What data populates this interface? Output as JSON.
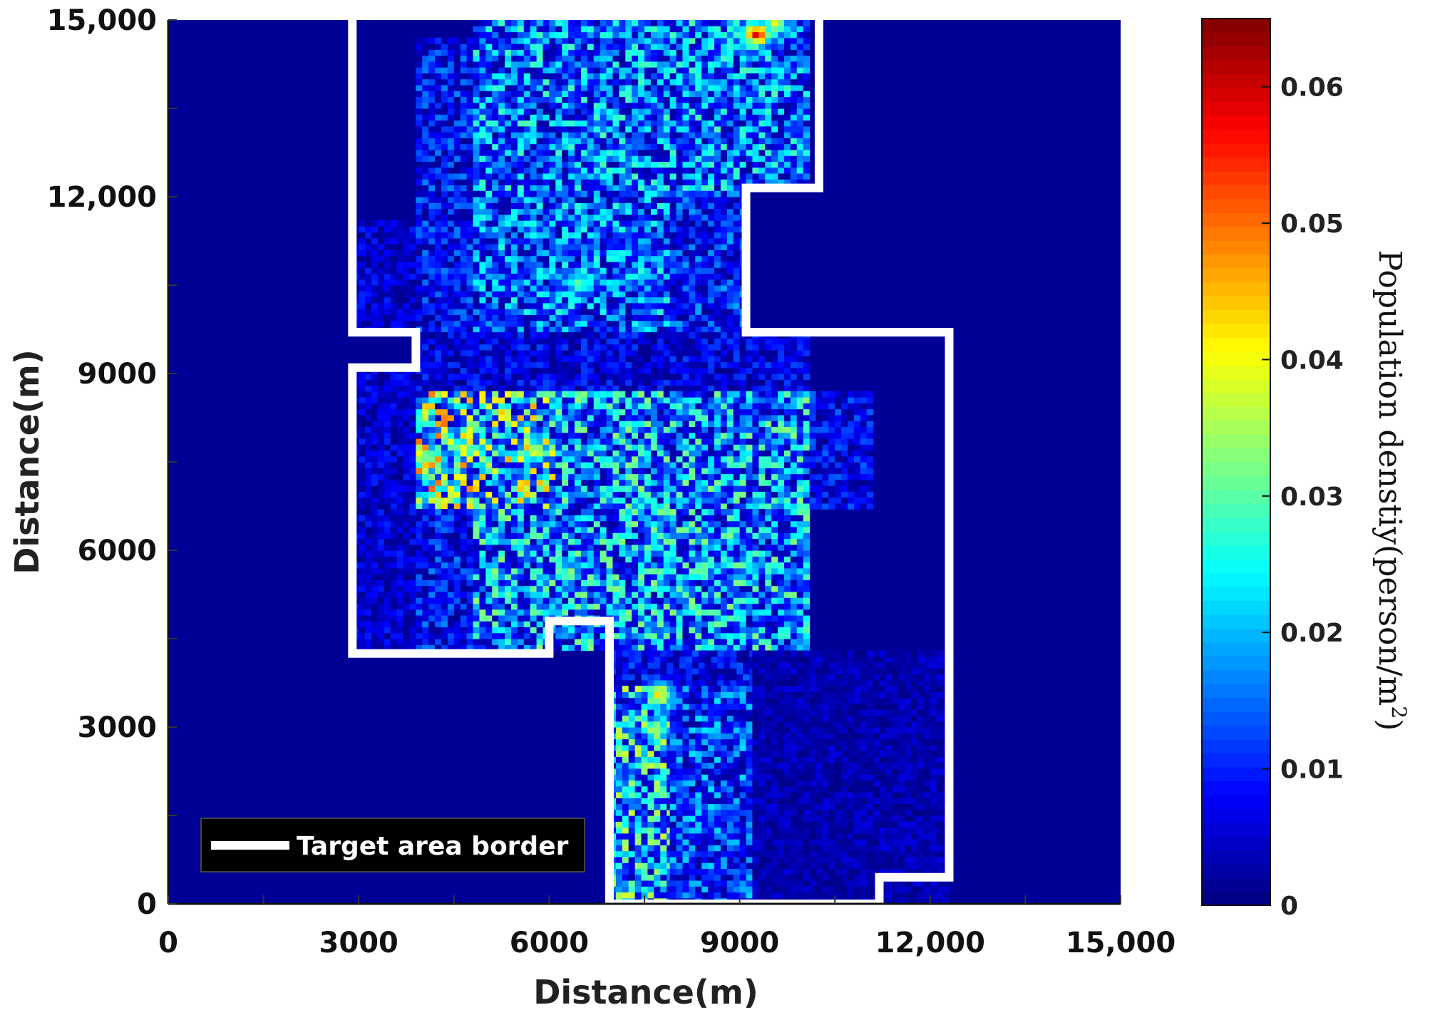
{
  "chart_data": {
    "type": "heatmap",
    "title": "",
    "xlabel": "Distance(m)",
    "ylabel": "Distance(m)",
    "xlim": [
      0,
      15000
    ],
    "ylim": [
      0,
      15000
    ],
    "x_tick_labels": [
      "0",
      "3000",
      "6000",
      "9000",
      "12,000",
      "15,000"
    ],
    "y_tick_labels": [
      "0",
      "3000",
      "6000",
      "9000",
      "12,000",
      "15,000"
    ],
    "x_ticks": [
      0,
      3000,
      6000,
      9000,
      12000,
      15000
    ],
    "y_ticks": [
      0,
      3000,
      6000,
      9000,
      12000,
      15000
    ],
    "colorscale": "jet",
    "colorbar": {
      "title": "Population denstiy(person/m",
      "title_superscript": "2",
      "title_close": ")",
      "range": [
        0,
        0.065
      ],
      "ticks": [
        0,
        0.01,
        0.02,
        0.03,
        0.04,
        0.05,
        0.06
      ],
      "tick_labels": [
        "0",
        "0.01",
        "0.02",
        "0.03",
        "0.04",
        "0.05",
        "0.06"
      ]
    },
    "background_value": 0.0015,
    "legend": {
      "entries": [
        "Target area border"
      ],
      "placement": "bottom-left"
    },
    "target_area_border": [
      [
        2900,
        15000
      ],
      [
        2900,
        9700
      ],
      [
        3900,
        9700
      ],
      [
        3900,
        9100
      ],
      [
        2900,
        9100
      ],
      [
        2900,
        4250
      ],
      [
        6000,
        4250
      ],
      [
        6000,
        4800
      ],
      [
        6950,
        4800
      ],
      [
        6950,
        0
      ],
      [
        11200,
        0
      ],
      [
        11200,
        450
      ],
      [
        12300,
        450
      ],
      [
        12300,
        9700
      ],
      [
        9100,
        9700
      ],
      [
        9100,
        12150
      ],
      [
        10250,
        12150
      ],
      [
        10250,
        15000
      ]
    ],
    "density_zones": [
      {
        "x": [
          2900,
          3900
        ],
        "y": [
          9700,
          11600
        ],
        "mean": 0.005
      },
      {
        "x": [
          3900,
          4800
        ],
        "y": [
          9700,
          14700
        ],
        "mean": 0.008
      },
      {
        "x": [
          4800,
          10100
        ],
        "y": [
          12100,
          15000
        ],
        "mean": 0.014
      },
      {
        "x": [
          4800,
          7900
        ],
        "y": [
          9700,
          12100
        ],
        "mean": 0.013
      },
      {
        "x": [
          7900,
          9100
        ],
        "y": [
          9700,
          12100
        ],
        "mean": 0.009
      },
      {
        "x": [
          3900,
          10100
        ],
        "y": [
          8700,
          9700
        ],
        "mean": 0.006
      },
      {
        "x": [
          2900,
          3900
        ],
        "y": [
          4300,
          9100
        ],
        "mean": 0.005
      },
      {
        "x": [
          3900,
          4800
        ],
        "y": [
          6700,
          8700
        ],
        "mean": 0.024
      },
      {
        "x": [
          4800,
          6100
        ],
        "y": [
          6700,
          8700
        ],
        "mean": 0.022
      },
      {
        "x": [
          6100,
          10100
        ],
        "y": [
          6700,
          8700
        ],
        "mean": 0.016
      },
      {
        "x": [
          10100,
          11100
        ],
        "y": [
          6700,
          8700
        ],
        "mean": 0.007
      },
      {
        "x": [
          3900,
          4800
        ],
        "y": [
          4300,
          6700
        ],
        "mean": 0.008
      },
      {
        "x": [
          4800,
          10100
        ],
        "y": [
          4300,
          6700
        ],
        "mean": 0.016
      },
      {
        "x": [
          6950,
          9200
        ],
        "y": [
          3700,
          4300
        ],
        "mean": 0.007
      },
      {
        "x": [
          6950,
          7900
        ],
        "y": [
          0,
          3700
        ],
        "mean": 0.018
      },
      {
        "x": [
          7900,
          9200
        ],
        "y": [
          0,
          3700
        ],
        "mean": 0.011
      },
      {
        "x": [
          9200,
          12300
        ],
        "y": [
          0,
          4300
        ],
        "mean": 0.003
      }
    ],
    "hotspots": [
      {
        "x": 4100,
        "y": 7500,
        "value": 0.042
      },
      {
        "x": 4600,
        "y": 7700,
        "value": 0.036
      },
      {
        "x": 5700,
        "y": 7650,
        "value": 0.044
      },
      {
        "x": 7700,
        "y": 3500,
        "value": 0.045
      },
      {
        "x": 7650,
        "y": 2900,
        "value": 0.038
      },
      {
        "x": 9200,
        "y": 14700,
        "value": 0.06
      },
      {
        "x": 9500,
        "y": 14900,
        "value": 0.04
      },
      {
        "x": 6450,
        "y": 10500,
        "value": 0.035
      }
    ]
  }
}
